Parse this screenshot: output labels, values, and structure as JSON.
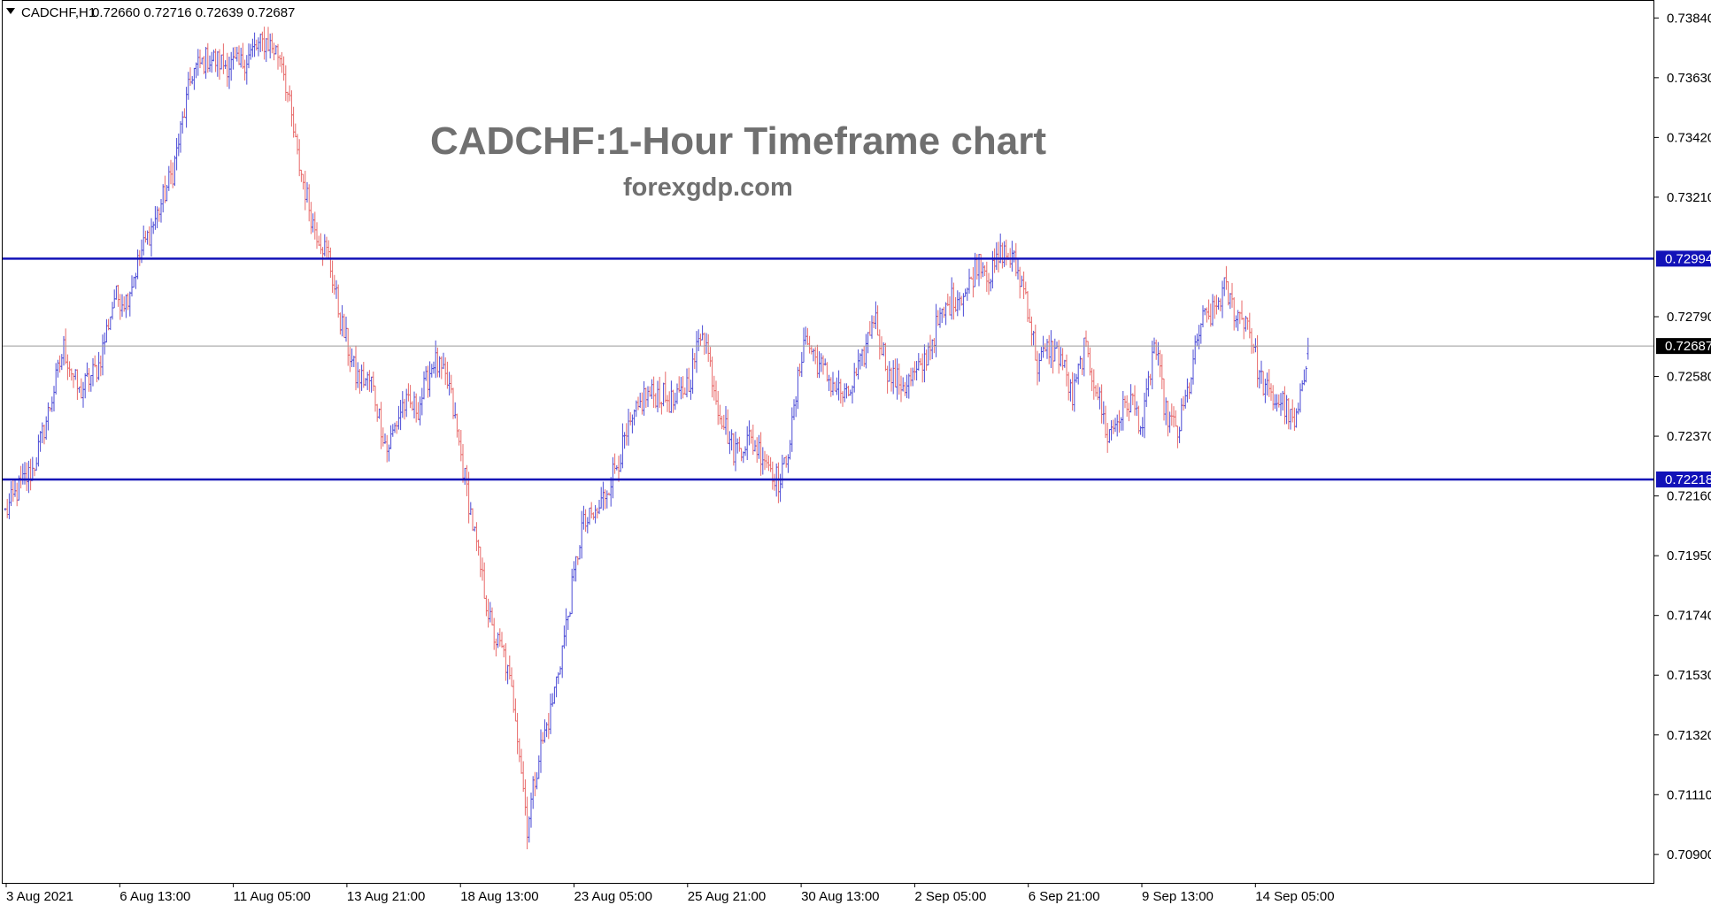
{
  "header": {
    "symbol_text": "CADCHF,H1",
    "ohlc_text": "0.72660 0.72716 0.72639 0.72687"
  },
  "title": "CADCHF:1-Hour Timeframe chart",
  "subtitle": "forexgdp.com",
  "colors": {
    "bull": "#4b4bd6",
    "bear": "#e86a6a",
    "level_line": "#1212b8",
    "last_line": "#9a9a9a",
    "tag_bg": "#1212b8",
    "last_tag_bg": "#000000",
    "title": "#707070"
  },
  "chart_data": {
    "type": "candlestick",
    "symbol": "CADCHF",
    "timeframe": "H1",
    "ylim": [
      0.708,
      0.739
    ],
    "y_ticks": [
      "0.73840",
      "0.73630",
      "0.73420",
      "0.73210",
      "0.72790",
      "0.72580",
      "0.72370",
      "0.72160",
      "0.71950",
      "0.71740",
      "0.71530",
      "0.71320",
      "0.71110",
      "0.70900"
    ],
    "x_ticks": [
      "3 Aug 2021",
      "6 Aug 13:00",
      "11 Aug 05:00",
      "13 Aug 21:00",
      "18 Aug 13:00",
      "23 Aug 05:00",
      "25 Aug 21:00",
      "30 Aug 13:00",
      "2 Sep 05:00",
      "6 Sep 21:00",
      "9 Sep 13:00",
      "14 Sep 05:00"
    ],
    "horizontal_levels": [
      {
        "label": "0.72994",
        "value": 0.72994
      },
      {
        "label": "0.72218",
        "value": 0.72218
      }
    ],
    "last_price": {
      "label": "0.72687",
      "value": 0.72687
    },
    "last_bar": {
      "open": 0.7266,
      "high": 0.72716,
      "low": 0.72639,
      "close": 0.72687
    },
    "anchors": [
      [
        0,
        0.721
      ],
      [
        8,
        0.722
      ],
      [
        14,
        0.7225
      ],
      [
        22,
        0.7245
      ],
      [
        30,
        0.7268
      ],
      [
        38,
        0.7252
      ],
      [
        48,
        0.7262
      ],
      [
        56,
        0.7286
      ],
      [
        62,
        0.7285
      ],
      [
        70,
        0.7302
      ],
      [
        78,
        0.7315
      ],
      [
        86,
        0.733
      ],
      [
        96,
        0.7365
      ],
      [
        104,
        0.737
      ],
      [
        112,
        0.7368
      ],
      [
        120,
        0.7367
      ],
      [
        128,
        0.7373
      ],
      [
        134,
        0.7376
      ],
      [
        142,
        0.737
      ],
      [
        150,
        0.7335
      ],
      [
        158,
        0.7312
      ],
      [
        166,
        0.73
      ],
      [
        172,
        0.7278
      ],
      [
        180,
        0.7258
      ],
      [
        188,
        0.7256
      ],
      [
        196,
        0.7232
      ],
      [
        204,
        0.7248
      ],
      [
        212,
        0.7247
      ],
      [
        220,
        0.7264
      ],
      [
        228,
        0.7254
      ],
      [
        236,
        0.7222
      ],
      [
        244,
        0.719
      ],
      [
        250,
        0.7168
      ],
      [
        256,
        0.716
      ],
      [
        262,
        0.714
      ],
      [
        268,
        0.71
      ],
      [
        274,
        0.7125
      ],
      [
        280,
        0.714
      ],
      [
        288,
        0.717
      ],
      [
        296,
        0.7205
      ],
      [
        304,
        0.721
      ],
      [
        312,
        0.7224
      ],
      [
        320,
        0.7238
      ],
      [
        328,
        0.7251
      ],
      [
        336,
        0.7252
      ],
      [
        344,
        0.7248
      ],
      [
        352,
        0.7258
      ],
      [
        358,
        0.7276
      ],
      [
        366,
        0.7248
      ],
      [
        374,
        0.7232
      ],
      [
        382,
        0.7236
      ],
      [
        390,
        0.723
      ],
      [
        398,
        0.722
      ],
      [
        404,
        0.724
      ],
      [
        410,
        0.7272
      ],
      [
        418,
        0.7262
      ],
      [
        424,
        0.7256
      ],
      [
        432,
        0.725
      ],
      [
        440,
        0.7263
      ],
      [
        446,
        0.728
      ],
      [
        454,
        0.7258
      ],
      [
        462,
        0.7255
      ],
      [
        470,
        0.726
      ],
      [
        478,
        0.7275
      ],
      [
        486,
        0.7285
      ],
      [
        494,
        0.7288
      ],
      [
        500,
        0.73
      ],
      [
        506,
        0.7293
      ],
      [
        512,
        0.7302
      ],
      [
        518,
        0.7298
      ],
      [
        524,
        0.7287
      ],
      [
        530,
        0.7262
      ],
      [
        536,
        0.7268
      ],
      [
        542,
        0.7265
      ],
      [
        548,
        0.725
      ],
      [
        554,
        0.7268
      ],
      [
        560,
        0.7255
      ],
      [
        566,
        0.7237
      ],
      [
        572,
        0.7244
      ],
      [
        578,
        0.725
      ],
      [
        584,
        0.724
      ],
      [
        590,
        0.727
      ],
      [
        596,
        0.7245
      ],
      [
        602,
        0.7238
      ],
      [
        608,
        0.7255
      ],
      [
        614,
        0.7277
      ],
      [
        620,
        0.728
      ],
      [
        626,
        0.7289
      ],
      [
        632,
        0.728
      ],
      [
        638,
        0.7278
      ],
      [
        644,
        0.7258
      ],
      [
        650,
        0.725
      ],
      [
        656,
        0.7249
      ],
      [
        662,
        0.724
      ],
      [
        666,
        0.7252
      ],
      [
        669,
        0.72687
      ]
    ]
  }
}
